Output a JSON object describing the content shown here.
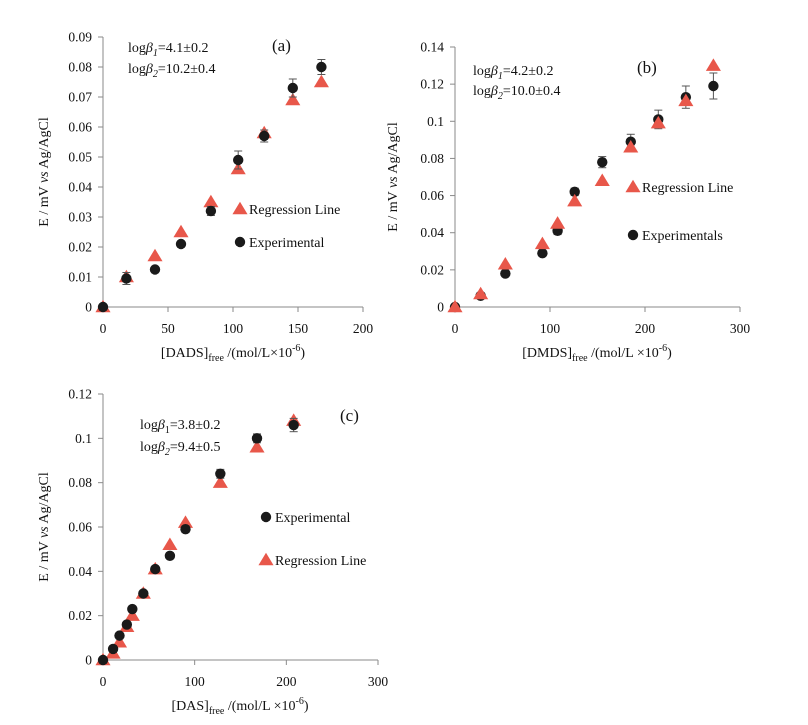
{
  "colors": {
    "axis": "#8a8a8a",
    "regression": "#e8574a",
    "experimental": "#1a1a1a",
    "errorbar": "#555555"
  },
  "chart_data": [
    {
      "panel_label": "(a)",
      "type": "scatter",
      "annotation": {
        "line1_prefix": "log",
        "line1_symbol": "β",
        "line1_sub": "1",
        "line1_value": "=4.1±0.2",
        "line2_prefix": "log",
        "line2_symbol": "β",
        "line2_sub": "2",
        "line2_value": "=10.2±0.4"
      },
      "ylabel": {
        "prefix": "E / mV ",
        "italic": "vs",
        "suffix": " Ag/AgCl"
      },
      "xlabel": {
        "main": "[DADS]",
        "sub": "free",
        "rest": " /(mol/L×10",
        "sup": "-6",
        "end": ")"
      },
      "xlim": [
        0,
        200
      ],
      "ylim": [
        0,
        0.09
      ],
      "xticks": [
        0,
        50,
        100,
        150,
        200
      ],
      "xtick_labels": [
        "0",
        "50",
        "100",
        "150",
        "200"
      ],
      "yticks": [
        0,
        0.01,
        0.02,
        0.03,
        0.04,
        0.05,
        0.06,
        0.07,
        0.08,
        0.09
      ],
      "ytick_labels": [
        "0",
        "0.01",
        "0.02",
        "0.03",
        "0.04",
        "0.05",
        "0.06",
        "0.07",
        "0.08",
        "0.09"
      ],
      "legend": [
        {
          "name": "Regression Line",
          "marker": "triangle"
        },
        {
          "name": "Experimental",
          "marker": "circle"
        }
      ],
      "legend_position": "center-right",
      "series": [
        {
          "name": "Regression Line",
          "marker": "triangle",
          "x": [
            0,
            18,
            40,
            60,
            83,
            104,
            124,
            146,
            168
          ],
          "y": [
            0,
            0.01,
            0.017,
            0.025,
            0.035,
            0.046,
            0.058,
            0.069,
            0.075
          ]
        },
        {
          "name": "Experimental",
          "marker": "circle",
          "x": [
            0,
            18,
            40,
            60,
            83,
            104,
            124,
            146,
            168
          ],
          "y": [
            0,
            0.0095,
            0.0125,
            0.021,
            0.032,
            0.049,
            0.057,
            0.073,
            0.08
          ],
          "err": [
            0,
            0.002,
            0,
            0,
            0.0015,
            0.003,
            0.002,
            0.003,
            0.0025
          ]
        }
      ]
    },
    {
      "panel_label": "(b)",
      "type": "scatter",
      "annotation": {
        "line1_prefix": "log",
        "line1_symbol": "β",
        "line1_sub": "1",
        "line1_value": "=4.2±0.2",
        "line2_prefix": "log",
        "line2_symbol": "β",
        "line2_sub": "2",
        "line2_value": "=10.0±0.4"
      },
      "ylabel": {
        "prefix": "E / mV ",
        "italic": "vs",
        "suffix": " Ag/AgCl"
      },
      "xlabel": {
        "main": "[DMDS]",
        "sub": "free",
        "rest": " /(mol/L ×10",
        "sup": "-6",
        "end": ")"
      },
      "xlim": [
        0,
        300
      ],
      "ylim": [
        0,
        0.14
      ],
      "xticks": [
        0,
        100,
        200,
        300
      ],
      "xtick_labels": [
        "0",
        "100",
        "200",
        "300"
      ],
      "yticks": [
        0,
        0.02,
        0.04,
        0.06,
        0.08,
        0.1,
        0.12,
        0.14
      ],
      "ytick_labels": [
        "0",
        "0.02",
        "0.04",
        "0.06",
        "0.08",
        "0.1",
        "0.12",
        "0.14"
      ],
      "legend": [
        {
          "name": "Regression Line",
          "marker": "triangle"
        },
        {
          "name": "Experimentals",
          "marker": "circle"
        }
      ],
      "legend_position": "center-right",
      "series": [
        {
          "name": "Regression Line",
          "marker": "triangle",
          "x": [
            0,
            27,
            53,
            92,
            108,
            126,
            155,
            185,
            214,
            243,
            272
          ],
          "y": [
            0,
            0.007,
            0.023,
            0.034,
            0.045,
            0.057,
            0.068,
            0.086,
            0.099,
            0.111,
            0.13
          ],
          "err": [
            0,
            0,
            0,
            0,
            0,
            0,
            0,
            0,
            0,
            0,
            0
          ]
        },
        {
          "name": "Experimentals",
          "marker": "circle",
          "x": [
            0,
            27,
            53,
            92,
            108,
            126,
            155,
            185,
            214,
            243,
            272
          ],
          "y": [
            0,
            0.006,
            0.018,
            0.029,
            0.041,
            0.062,
            0.078,
            0.089,
            0.101,
            0.113,
            0.119
          ],
          "err": [
            0,
            0,
            0,
            0,
            0.002,
            0.002,
            0.003,
            0.004,
            0.005,
            0.006,
            0.007
          ]
        }
      ]
    },
    {
      "panel_label": "(c)",
      "type": "scatter",
      "annotation": {
        "line1_prefix": "log",
        "line1_symbol": "β",
        "line1_sub": "1",
        "line1_value": "=3.8±0.2",
        "line2_prefix": "log",
        "line2_symbol": "β",
        "line2_sub": "2",
        "line2_value": "=9.4±0.5"
      },
      "ylabel": {
        "prefix": "E / mV ",
        "italic": "vs",
        "suffix": " Ag/AgCl"
      },
      "xlabel": {
        "main": "[DAS]",
        "sub": "free",
        "rest": " /(mol/L ×10",
        "sup": "-6",
        "end": ")"
      },
      "xlim": [
        0,
        300
      ],
      "ylim": [
        0,
        0.12
      ],
      "xticks": [
        0,
        100,
        200,
        300
      ],
      "xtick_labels": [
        "0",
        "100",
        "200",
        "300"
      ],
      "yticks": [
        0,
        0.02,
        0.04,
        0.06,
        0.08,
        0.1,
        0.12
      ],
      "ytick_labels": [
        "0",
        "0.02",
        "0.04",
        "0.06",
        "0.08",
        "0.1",
        "0.12"
      ],
      "legend": [
        {
          "name": "Experimental",
          "marker": "circle"
        },
        {
          "name": "Regression Line",
          "marker": "triangle"
        }
      ],
      "legend_position": "center-right",
      "series": [
        {
          "name": "Experimental",
          "marker": "circle",
          "x": [
            0,
            11,
            18,
            26,
            32,
            44,
            57,
            73,
            90,
            128,
            168,
            208
          ],
          "y": [
            0,
            0.005,
            0.011,
            0.016,
            0.023,
            0.03,
            0.041,
            0.047,
            0.059,
            0.084,
            0.1,
            0.106
          ],
          "err": [
            0,
            0,
            0,
            0,
            0,
            0,
            0,
            0,
            0.0015,
            0.002,
            0.002,
            0.003
          ]
        },
        {
          "name": "Regression Line",
          "marker": "triangle",
          "x": [
            0,
            11,
            18,
            26,
            32,
            44,
            57,
            73,
            90,
            128,
            168,
            208
          ],
          "y": [
            0,
            0.003,
            0.008,
            0.015,
            0.02,
            0.03,
            0.041,
            0.052,
            0.062,
            0.08,
            0.096,
            0.108
          ],
          "err": [
            0,
            0,
            0,
            0,
            0,
            0,
            0,
            0,
            0,
            0,
            0,
            0
          ]
        }
      ]
    }
  ]
}
